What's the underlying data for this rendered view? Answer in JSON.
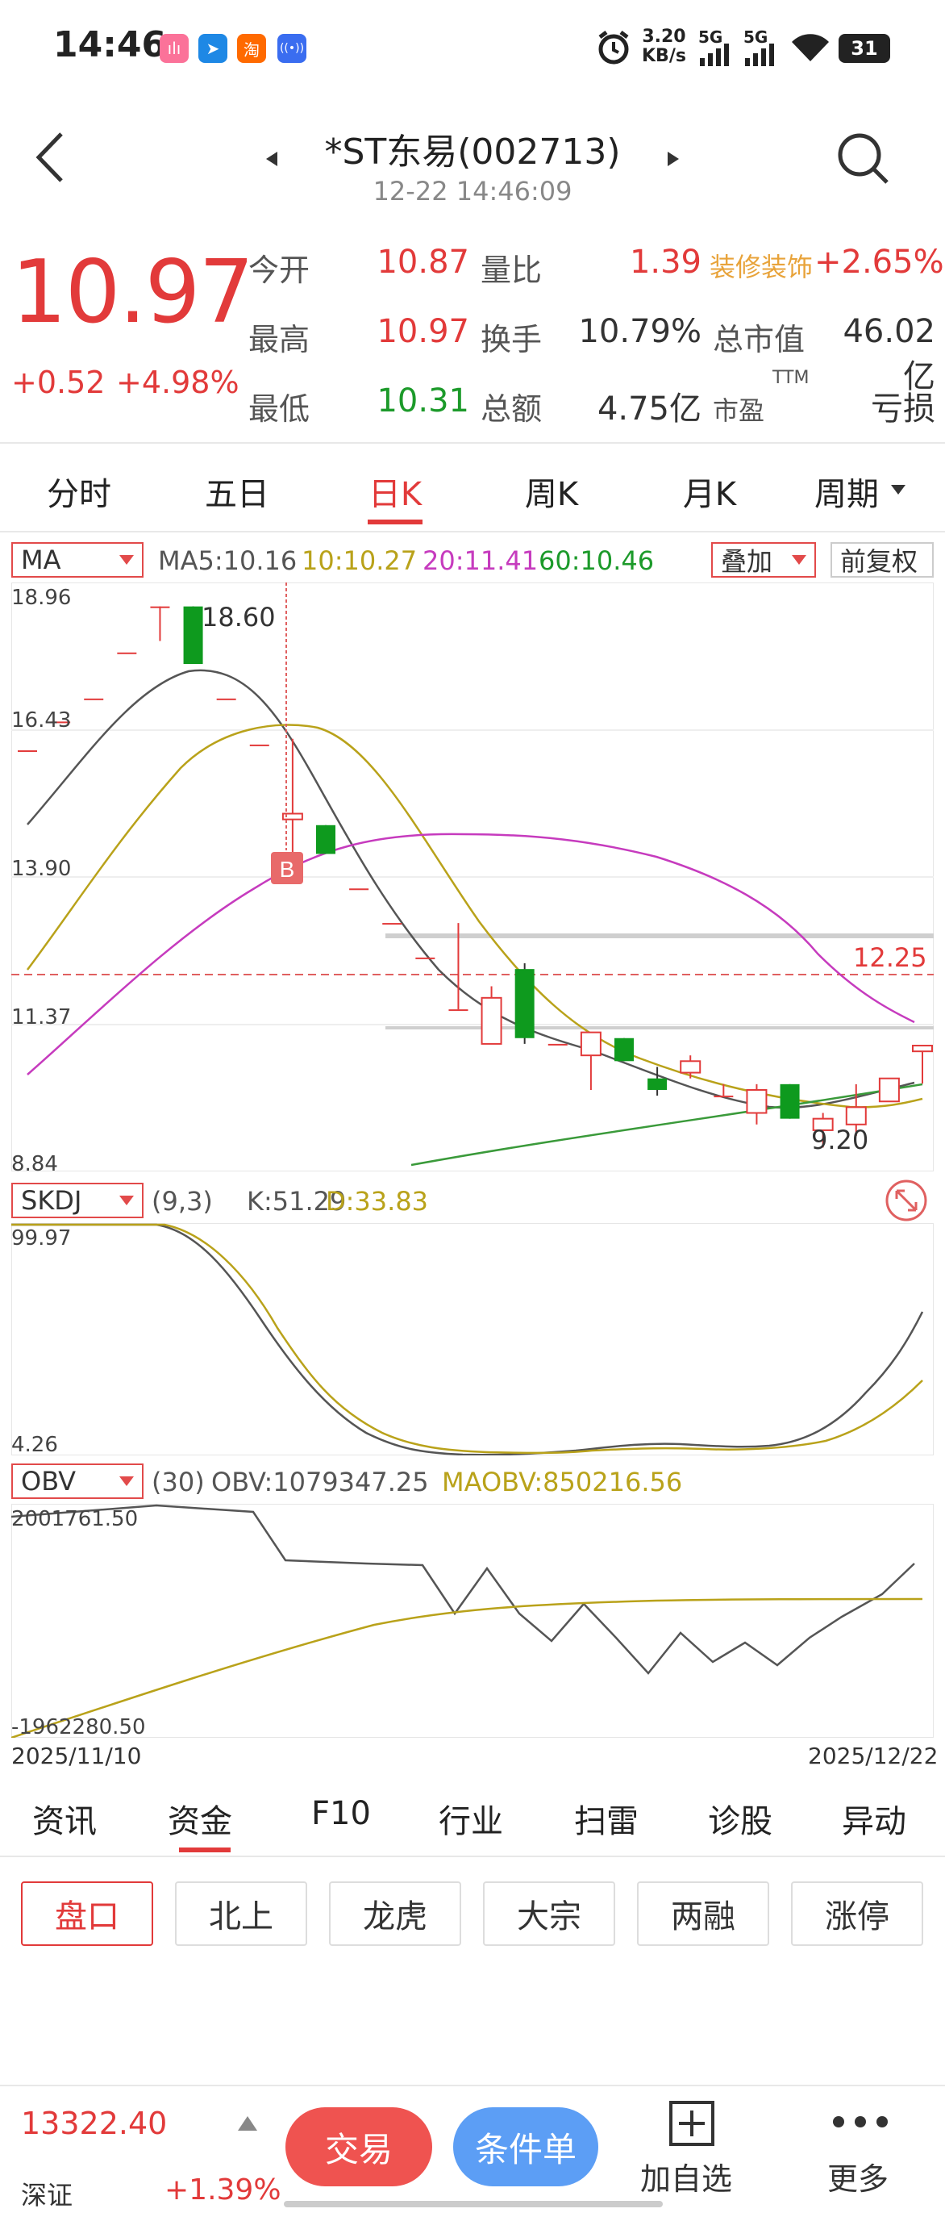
{
  "status_bar": {
    "time": "14:46",
    "app_icons": [
      {
        "name": "bilibili-icon",
        "glyph": "ılı",
        "color": "#fb7299"
      },
      {
        "name": "feishu-icon",
        "glyph": "➤",
        "color": "#1e88e5"
      },
      {
        "name": "taobao-icon",
        "glyph": "淘",
        "color": "#ff6a00"
      },
      {
        "name": "broadcast-icon",
        "glyph": "((•))",
        "color": "#3a6df0"
      }
    ],
    "net_speed": "3.20",
    "net_unit": "KB/s",
    "sig1": "5G",
    "sig2": "5G",
    "battery": "31"
  },
  "header": {
    "title": "*ST东易(002713)",
    "datetime": "12-22 14:46:09"
  },
  "quote": {
    "price": "10.97",
    "change": "+0.52",
    "change_pct": "+4.98%",
    "rows": [
      {
        "l1": "今开",
        "v1": "10.87",
        "c1": "red",
        "l2": "量比",
        "v2": "1.39",
        "c2": "red",
        "l3": "装修装饰",
        "v3": "+2.65%",
        "c3": "red"
      },
      {
        "l1": "最高",
        "v1": "10.97",
        "c1": "red",
        "l2": "换手",
        "v2": "10.79%",
        "c2": "dark",
        "l3": "总市值",
        "v3": "46.02亿",
        "c3": "dark"
      },
      {
        "l1": "最低",
        "v1": "10.31",
        "c1": "green",
        "l2": "总额",
        "v2": "4.75亿",
        "c2": "dark",
        "l3": "市盈",
        "v3": "亏损",
        "c3": "dark"
      }
    ],
    "pe_sup": "TTM"
  },
  "period_tabs": [
    "分时",
    "五日",
    "日K",
    "周K",
    "月K",
    "周期"
  ],
  "active_period": 2,
  "ma_panel": {
    "selector": "MA",
    "ma5": "MA5:10.16",
    "ma10": "10:10.27",
    "ma20": "20:11.41",
    "ma60": "60:10.46",
    "overlay": "叠加",
    "adjust": "前复权",
    "y_ticks": [
      "18.96",
      "16.43",
      "13.90",
      "11.37",
      "8.84"
    ],
    "high_label": "18.60",
    "low_label": "9.20",
    "price_line": "12.25",
    "buy_marker": "B"
  },
  "skdj_panel": {
    "selector": "SKDJ",
    "params": "(9,3)",
    "k": "K:51.29",
    "d": "D:33.83",
    "y_ticks": [
      "99.97",
      "4.26"
    ]
  },
  "obv_panel": {
    "selector": "OBV",
    "params": "(30)",
    "obv": "OBV:1079347.25",
    "maobv": "MAOBV:850216.56",
    "y_ticks": [
      "2001761.50",
      "-1962280.50"
    ],
    "date_start": "2025/11/10",
    "date_end": "2025/12/22"
  },
  "chart_data": {
    "type": "candlestick",
    "y_range": [
      8.84,
      18.96
    ],
    "candles": [
      {
        "o": 16.1,
        "c": 16.1,
        "h": 16.1,
        "l": 16.1
      },
      {
        "o": 16.6,
        "c": 16.6,
        "h": 16.6,
        "l": 16.6
      },
      {
        "o": 17.0,
        "c": 17.0,
        "h": 17.0,
        "l": 17.0
      },
      {
        "o": 17.8,
        "c": 17.8,
        "h": 17.8,
        "l": 17.8
      },
      {
        "o": 18.6,
        "c": 18.6,
        "h": 18.6,
        "l": 18.0
      },
      {
        "o": 18.6,
        "c": 17.6,
        "h": 18.6,
        "l": 17.6
      },
      {
        "o": 17.0,
        "c": 17.0,
        "h": 17.0,
        "l": 17.0
      },
      {
        "o": 16.2,
        "c": 16.2,
        "h": 16.2,
        "l": 16.2
      },
      {
        "o": 14.9,
        "c": 15.0,
        "h": 16.3,
        "l": 14.0
      },
      {
        "o": 14.8,
        "c": 14.3,
        "h": 14.8,
        "l": 14.3
      },
      {
        "o": 13.7,
        "c": 13.7,
        "h": 13.7,
        "l": 13.7
      },
      {
        "o": 13.1,
        "c": 13.1,
        "h": 13.1,
        "l": 13.1
      },
      {
        "o": 12.5,
        "c": 12.5,
        "h": 12.5,
        "l": 12.5
      },
      {
        "o": 11.6,
        "c": 11.6,
        "h": 13.1,
        "l": 11.6
      },
      {
        "o": 11.0,
        "c": 11.8,
        "h": 12.0,
        "l": 11.0
      },
      {
        "o": 12.3,
        "c": 11.1,
        "h": 12.4,
        "l": 11.0
      },
      {
        "o": 11.0,
        "c": 11.0,
        "h": 11.0,
        "l": 11.0
      },
      {
        "o": 10.8,
        "c": 11.2,
        "h": 11.2,
        "l": 10.2
      },
      {
        "o": 11.1,
        "c": 10.7,
        "h": 11.1,
        "l": 10.7
      },
      {
        "o": 10.4,
        "c": 10.2,
        "h": 10.6,
        "l": 10.1
      },
      {
        "o": 10.5,
        "c": 10.7,
        "h": 10.8,
        "l": 10.4
      },
      {
        "o": 10.1,
        "c": 10.1,
        "h": 10.3,
        "l": 10.1
      },
      {
        "o": 9.8,
        "c": 10.2,
        "h": 10.3,
        "l": 9.6
      },
      {
        "o": 10.3,
        "c": 9.7,
        "h": 10.3,
        "l": 9.7
      },
      {
        "o": 9.5,
        "c": 9.7,
        "h": 9.8,
        "l": 9.2
      },
      {
        "o": 9.6,
        "c": 9.9,
        "h": 10.3,
        "l": 9.4
      },
      {
        "o": 10.0,
        "c": 10.4,
        "h": 10.4,
        "l": 10.0
      },
      {
        "o": 10.87,
        "c": 10.97,
        "h": 10.97,
        "l": 10.31
      }
    ]
  },
  "bottom_tabs": [
    "资讯",
    "资金",
    "F10",
    "行业",
    "扫雷",
    "诊股",
    "异动"
  ],
  "active_bottom_tab": 1,
  "sub_tabs": [
    "盘口",
    "北上",
    "龙虎",
    "大宗",
    "两融",
    "涨停"
  ],
  "active_sub_tab": 0,
  "footer": {
    "index_value": "13322.40",
    "index_name": "深证",
    "index_change": "+1.39%",
    "trade": "交易",
    "condition": "条件单",
    "add_watch": "加自选",
    "more": "更多"
  }
}
